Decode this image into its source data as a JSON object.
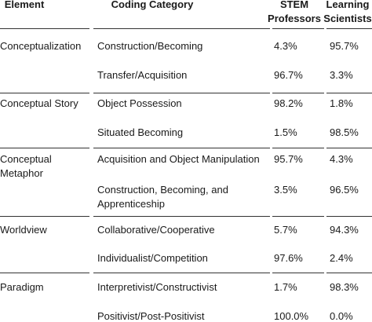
{
  "table": {
    "header": [
      "Element",
      "Coding Category",
      "STEM Professors",
      "Learning Scientists"
    ],
    "groups": [
      {
        "element": "Conceptualization",
        "rows": [
          [
            "Construction/Becoming",
            "4.3%",
            "95.7%"
          ],
          [
            "Transfer/Acquisition",
            "96.7%",
            "3.3%"
          ]
        ]
      },
      {
        "element": "Conceptual Story",
        "rows": [
          [
            "Object Possession",
            "98.2%",
            "1.8%"
          ],
          [
            "Situated Becoming",
            "1.5%",
            "98.5%"
          ]
        ]
      },
      {
        "element": "Conceptual Metaphor",
        "rows": [
          [
            "Acquisition and Object Manipulation",
            "95.7%",
            "4.3%"
          ],
          [
            "Construction, Becoming, and Apprenticeship",
            "3.5%",
            "96.5%"
          ]
        ]
      },
      {
        "element": "Worldview",
        "rows": [
          [
            "Collaborative/Cooperative",
            "5.7%",
            "94.3%"
          ],
          [
            "Individualist/Competition",
            "97.6%",
            "2.4%"
          ]
        ]
      },
      {
        "element": "Paradigm",
        "rows": [
          [
            "Interpretivist/Constructivist",
            "1.7%",
            "98.3%"
          ],
          [
            "Positivist/Post-Positivist",
            "100.0%",
            "0.0%"
          ]
        ]
      }
    ]
  }
}
